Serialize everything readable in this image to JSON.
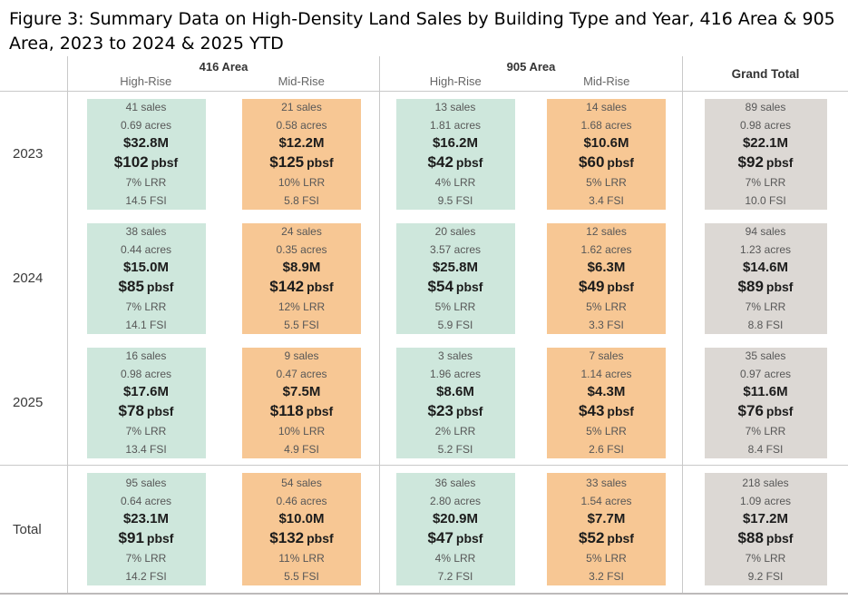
{
  "title": "Figure 3: Summary Data on High-Density Land Sales by Building Type and Year, 416 Area & 905 Area, 2023 to 2024 & 2025 YTD",
  "header": {
    "groups": [
      {
        "label": "416 Area",
        "subcolumns": [
          "High-Rise",
          "Mid-Rise"
        ]
      },
      {
        "label": "905 Area",
        "subcolumns": [
          "High-Rise",
          "Mid-Rise"
        ]
      }
    ],
    "grand_total": "Grand Total"
  },
  "colors": {
    "high_rise_cell": "#cee7dc",
    "mid_rise_cell": "#f7c794",
    "grand_total_cell": "#dcd8d4"
  },
  "chart_data": {
    "type": "table",
    "title": "Figure 3: Summary Data on High-Density Land Sales by Building Type and Year, 416 Area & 905 Area, 2023 to 2024 & 2025 YTD",
    "columns": [
      "416 Area High-Rise",
      "416 Area Mid-Rise",
      "905 Area High-Rise",
      "905 Area Mid-Rise",
      "Grand Total"
    ],
    "row_labels": [
      "2023",
      "2024",
      "2025",
      "Total"
    ],
    "total_row_label": "Total",
    "cell_line_suffixes": {
      "sales": " sales",
      "acres": " acres",
      "pbsf": "pbsf",
      "lrr": " LRR",
      "fsi": " FSI"
    },
    "rows": [
      {
        "label": "2023",
        "cells": [
          {
            "sales": "41",
            "acres": "0.69",
            "value": "$32.8M",
            "pbsf": "$102",
            "lrr": "7%",
            "fsi": "14.5"
          },
          {
            "sales": "21",
            "acres": "0.58",
            "value": "$12.2M",
            "pbsf": "$125",
            "lrr": "10%",
            "fsi": "5.8"
          },
          {
            "sales": "13",
            "acres": "1.81",
            "value": "$16.2M",
            "pbsf": "$42",
            "lrr": "4%",
            "fsi": "9.5"
          },
          {
            "sales": "14",
            "acres": "1.68",
            "value": "$10.6M",
            "pbsf": "$60",
            "lrr": "5%",
            "fsi": "3.4"
          },
          {
            "sales": "89",
            "acres": "0.98",
            "value": "$22.1M",
            "pbsf": "$92",
            "lrr": "7%",
            "fsi": "10.0"
          }
        ]
      },
      {
        "label": "2024",
        "cells": [
          {
            "sales": "38",
            "acres": "0.44",
            "value": "$15.0M",
            "pbsf": "$85",
            "lrr": "7%",
            "fsi": "14.1"
          },
          {
            "sales": "24",
            "acres": "0.35",
            "value": "$8.9M",
            "pbsf": "$142",
            "lrr": "12%",
            "fsi": "5.5"
          },
          {
            "sales": "20",
            "acres": "3.57",
            "value": "$25.8M",
            "pbsf": "$54",
            "lrr": "5%",
            "fsi": "5.9"
          },
          {
            "sales": "12",
            "acres": "1.62",
            "value": "$6.3M",
            "pbsf": "$49",
            "lrr": "5%",
            "fsi": "3.3"
          },
          {
            "sales": "94",
            "acres": "1.23",
            "value": "$14.6M",
            "pbsf": "$89",
            "lrr": "7%",
            "fsi": "8.8"
          }
        ]
      },
      {
        "label": "2025",
        "cells": [
          {
            "sales": "16",
            "acres": "0.98",
            "value": "$17.6M",
            "pbsf": "$78",
            "lrr": "7%",
            "fsi": "13.4"
          },
          {
            "sales": "9",
            "acres": "0.47",
            "value": "$7.5M",
            "pbsf": "$118",
            "lrr": "10%",
            "fsi": "4.9"
          },
          {
            "sales": "3",
            "acres": "1.96",
            "value": "$8.6M",
            "pbsf": "$23",
            "lrr": "2%",
            "fsi": "5.2"
          },
          {
            "sales": "7",
            "acres": "1.14",
            "value": "$4.3M",
            "pbsf": "$43",
            "lrr": "5%",
            "fsi": "2.6"
          },
          {
            "sales": "35",
            "acres": "0.97",
            "value": "$11.6M",
            "pbsf": "$76",
            "lrr": "7%",
            "fsi": "8.4"
          }
        ]
      },
      {
        "label": "Total",
        "cells": [
          {
            "sales": "95",
            "acres": "0.64",
            "value": "$23.1M",
            "pbsf": "$91",
            "lrr": "7%",
            "fsi": "14.2"
          },
          {
            "sales": "54",
            "acres": "0.46",
            "value": "$10.0M",
            "pbsf": "$132",
            "lrr": "11%",
            "fsi": "5.5"
          },
          {
            "sales": "36",
            "acres": "2.80",
            "value": "$20.9M",
            "pbsf": "$47",
            "lrr": "4%",
            "fsi": "7.2"
          },
          {
            "sales": "33",
            "acres": "1.54",
            "value": "$7.7M",
            "pbsf": "$52",
            "lrr": "5%",
            "fsi": "3.2"
          },
          {
            "sales": "218",
            "acres": "1.09",
            "value": "$17.2M",
            "pbsf": "$88",
            "lrr": "7%",
            "fsi": "9.2"
          }
        ]
      }
    ]
  }
}
